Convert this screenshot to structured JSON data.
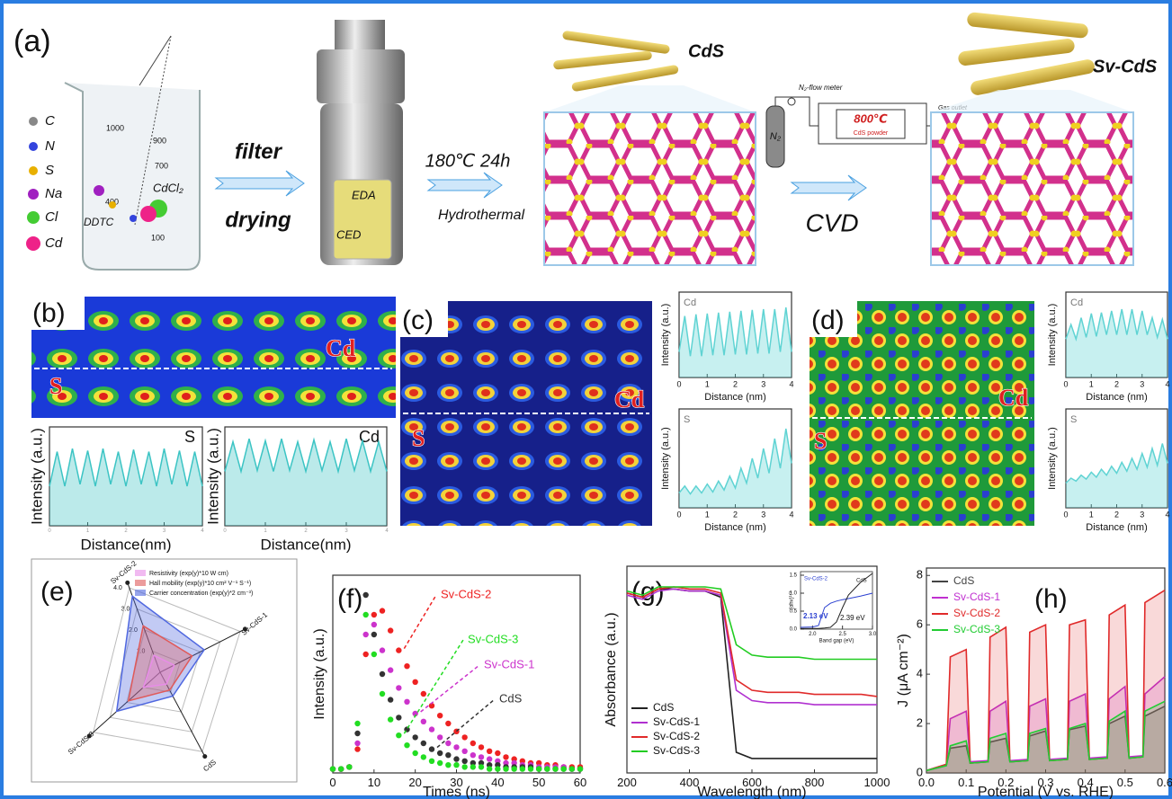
{
  "scheme": {
    "label": "(a)",
    "legend": [
      "C",
      "N",
      "S",
      "Na",
      "Cl",
      "Cd"
    ],
    "beaker_scale": [
      "1000",
      "900",
      "700",
      "400",
      "100"
    ],
    "beaker_labels": [
      "CdCl₂",
      "DDTC"
    ],
    "step1": [
      "filter",
      "drying"
    ],
    "autoclave": [
      "EDA",
      "CED"
    ],
    "step2": [
      "180℃ 24h",
      "Hydrothermal"
    ],
    "product1": "CdS",
    "cvd_setup": {
      "cylinder": "N₂",
      "flow": "N₂-flow meter",
      "temp": "800℃",
      "powder": "CdS powder",
      "outlet": "Gas outlet"
    },
    "step3": "CVD",
    "product2": "Sv-CdS"
  },
  "maps": [
    {
      "label": "(b)",
      "labels": [
        "Cd",
        "S"
      ]
    },
    {
      "label": "(c)",
      "labels": [
        "Cd",
        "S"
      ]
    },
    {
      "label": "(d)",
      "labels": [
        "Cd",
        "S"
      ]
    }
  ],
  "chart_data": [
    {
      "type": "area",
      "title": "S",
      "xlabel": "Distance(nm)",
      "ylabel": "Intensity (a.u.)",
      "x": [
        0,
        0.2,
        0.4,
        0.6,
        0.8,
        1,
        1.2,
        1.4,
        1.6,
        1.8,
        2,
        2.2,
        2.4,
        2.6,
        2.8,
        3,
        3.2,
        3.4,
        3.6,
        3.8,
        4
      ],
      "values": [
        0.4,
        0.75,
        0.4,
        0.78,
        0.42,
        0.76,
        0.4,
        0.78,
        0.42,
        0.75,
        0.4,
        0.77,
        0.42,
        0.75,
        0.4,
        0.78,
        0.42,
        0.76,
        0.4,
        0.75,
        0.4
      ],
      "xlim": [
        0,
        4
      ],
      "ylim": [
        0,
        1
      ],
      "xticks": [
        0,
        1,
        2,
        3,
        4
      ],
      "color": "#3cc4c4"
    },
    {
      "type": "area",
      "title": "Cd",
      "xlabel": "Distance(nm)",
      "ylabel": "Intensity (a.u.)",
      "x": [
        0,
        0.2,
        0.4,
        0.6,
        0.8,
        1,
        1.2,
        1.4,
        1.6,
        1.8,
        2,
        2.2,
        2.4,
        2.6,
        2.8,
        3,
        3.2,
        3.4,
        3.6,
        3.8,
        4
      ],
      "values": [
        0.55,
        0.85,
        0.55,
        0.88,
        0.56,
        0.86,
        0.55,
        0.88,
        0.56,
        0.85,
        0.55,
        0.87,
        0.56,
        0.85,
        0.55,
        0.88,
        0.56,
        0.86,
        0.55,
        0.85,
        0.55
      ],
      "xlim": [
        0,
        4
      ],
      "ylim": [
        0,
        1
      ],
      "xticks": [
        0,
        1,
        2,
        3,
        4
      ],
      "color": "#3cc4c4"
    },
    {
      "type": "area",
      "title": "Cd",
      "xlabel": "Distance (nm)",
      "ylabel": "Intensity (a.u.)",
      "x": [
        0,
        0.2,
        0.4,
        0.6,
        0.8,
        1,
        1.2,
        1.4,
        1.6,
        1.8,
        2,
        2.2,
        2.4,
        2.6,
        2.8,
        3,
        3.2,
        3.4,
        3.6,
        3.8,
        4
      ],
      "values": [
        0.3,
        0.72,
        0.25,
        0.74,
        0.25,
        0.75,
        0.26,
        0.76,
        0.26,
        0.77,
        0.27,
        0.78,
        0.27,
        0.79,
        0.28,
        0.8,
        0.28,
        0.8,
        0.3,
        0.82,
        0.3
      ],
      "xlim": [
        0,
        4
      ],
      "ylim": [
        0,
        1
      ],
      "xticks": [
        0,
        1,
        2,
        3,
        4
      ],
      "color": "#5fd3d3"
    },
    {
      "type": "area",
      "title": "S",
      "xlabel": "Distance (nm)",
      "ylabel": "Intensity (a.u.)",
      "x": [
        0,
        0.2,
        0.4,
        0.6,
        0.8,
        1,
        1.2,
        1.4,
        1.6,
        1.8,
        2,
        2.2,
        2.4,
        2.6,
        2.8,
        3,
        3.2,
        3.4,
        3.6,
        3.8,
        4
      ],
      "values": [
        0.15,
        0.22,
        0.14,
        0.22,
        0.15,
        0.24,
        0.16,
        0.27,
        0.18,
        0.32,
        0.2,
        0.4,
        0.25,
        0.5,
        0.3,
        0.6,
        0.35,
        0.7,
        0.4,
        0.8,
        0.45
      ],
      "xlim": [
        0,
        4
      ],
      "ylim": [
        0,
        1
      ],
      "xticks": [
        0,
        1,
        2,
        3,
        4
      ],
      "color": "#5fd3d3"
    },
    {
      "type": "area",
      "title": "Cd",
      "xlabel": "Distance (nm)",
      "ylabel": "Intensity (a.u.)",
      "x": [
        0,
        0.2,
        0.4,
        0.6,
        0.8,
        1,
        1.2,
        1.4,
        1.6,
        1.8,
        2,
        2.2,
        2.4,
        2.6,
        2.8,
        3,
        3.2,
        3.4,
        3.6,
        3.8,
        4
      ],
      "values": [
        0.45,
        0.62,
        0.45,
        0.7,
        0.47,
        0.75,
        0.48,
        0.76,
        0.5,
        0.78,
        0.5,
        0.8,
        0.5,
        0.8,
        0.5,
        0.78,
        0.5,
        0.7,
        0.47,
        0.68,
        0.45
      ],
      "xlim": [
        0,
        4
      ],
      "ylim": [
        0,
        1
      ],
      "xticks": [
        0,
        1,
        2,
        3,
        4
      ],
      "color": "#5fd3d3"
    },
    {
      "type": "area",
      "title": "S",
      "xlabel": "Distance (nm)",
      "ylabel": "Intensity (a.u.)",
      "x": [
        0,
        0.2,
        0.4,
        0.6,
        0.8,
        1,
        1.2,
        1.4,
        1.6,
        1.8,
        2,
        2.2,
        2.4,
        2.6,
        2.8,
        3,
        3.2,
        3.4,
        3.6,
        3.8,
        4
      ],
      "values": [
        0.25,
        0.3,
        0.27,
        0.33,
        0.29,
        0.36,
        0.31,
        0.39,
        0.33,
        0.42,
        0.35,
        0.46,
        0.37,
        0.5,
        0.39,
        0.55,
        0.41,
        0.6,
        0.43,
        0.65,
        0.45
      ],
      "xlim": [
        0,
        4
      ],
      "ylim": [
        0,
        1
      ],
      "xticks": [
        0,
        1,
        2,
        3,
        4
      ],
      "color": "#5fd3d3"
    },
    {
      "type": "radar",
      "label": "(e)",
      "categories": [
        "Sv-CdS-2",
        "Sv-CdS-1",
        "CdS",
        "Sv-CdS-3"
      ],
      "series": [
        {
          "name": "Resistivity (exp(y)*10 W cm)",
          "color": "#e88ce8",
          "values": [
            0.8,
            0.7,
            0.6,
            1.0
          ]
        },
        {
          "name": "Hall mobility (exp(y)*10 cm² V⁻¹ S⁻¹)",
          "color": "#e05a5a",
          "values": [
            2.2,
            1.6,
            0.9,
            1.9
          ]
        },
        {
          "name": "Carrier concentration (exp(y)*2 cm⁻³)",
          "color": "#5068e0",
          "values": [
            3.6,
            2.2,
            1.2,
            2.6
          ]
        }
      ],
      "ylim": [
        0,
        4
      ],
      "yticks": [
        {
          "value": 1,
          "label": "1.0"
        },
        {
          "value": 2,
          "label": "2.0"
        },
        {
          "value": 3,
          "label": "3.0"
        },
        {
          "value": 4,
          "label": "4.0"
        }
      ]
    },
    {
      "type": "scatter",
      "label": "(f)",
      "xlabel": "Times (ns)",
      "ylabel": "Intensity (a.u.)",
      "x": [
        0,
        2,
        4,
        6,
        8,
        10,
        12,
        14,
        16,
        18,
        20,
        22,
        24,
        26,
        28,
        30,
        32,
        34,
        36,
        38,
        40,
        42,
        44,
        46,
        48,
        50,
        52,
        54,
        56,
        58,
        60
      ],
      "series": [
        {
          "name": "CdS",
          "color": "#333333",
          "values": [
            0.02,
            0.02,
            0.03,
            0.2,
            0.9,
            0.7,
            0.5,
            0.37,
            0.28,
            0.22,
            0.18,
            0.15,
            0.12,
            0.1,
            0.09,
            0.07,
            0.06,
            0.05,
            0.05,
            0.04,
            0.04,
            0.03,
            0.03,
            0.03,
            0.03,
            0.02,
            0.02,
            0.02,
            0.02,
            0.02,
            0.02
          ]
        },
        {
          "name": "Sv-CdS-1",
          "color": "#cc33cc",
          "values": [
            0.02,
            0.02,
            0.03,
            0.15,
            0.7,
            0.75,
            0.62,
            0.52,
            0.43,
            0.36,
            0.3,
            0.26,
            0.22,
            0.18,
            0.15,
            0.13,
            0.11,
            0.09,
            0.08,
            0.07,
            0.06,
            0.05,
            0.05,
            0.04,
            0.04,
            0.03,
            0.03,
            0.03,
            0.03,
            0.02,
            0.02
          ]
        },
        {
          "name": "Sv-CdS-2",
          "color": "#ee2222",
          "values": [
            0.02,
            0.02,
            0.03,
            0.12,
            0.6,
            0.8,
            0.82,
            0.72,
            0.62,
            0.54,
            0.46,
            0.4,
            0.34,
            0.29,
            0.25,
            0.21,
            0.18,
            0.15,
            0.13,
            0.11,
            0.1,
            0.08,
            0.07,
            0.06,
            0.05,
            0.05,
            0.04,
            0.04,
            0.03,
            0.03,
            0.03
          ]
        },
        {
          "name": "Sv-CdS-3",
          "color": "#22dd22",
          "values": [
            0.02,
            0.02,
            0.03,
            0.25,
            0.8,
            0.6,
            0.4,
            0.27,
            0.19,
            0.14,
            0.1,
            0.08,
            0.06,
            0.05,
            0.04,
            0.04,
            0.03,
            0.03,
            0.03,
            0.02,
            0.02,
            0.02,
            0.02,
            0.02,
            0.02,
            0.02,
            0.02,
            0.02,
            0.02,
            0.02,
            0.02
          ]
        }
      ],
      "xlim": [
        0,
        60
      ],
      "ylim": [
        0,
        1
      ],
      "xticks": [
        0,
        10,
        20,
        30,
        40,
        50,
        60
      ]
    },
    {
      "type": "line",
      "label": "(g)",
      "xlabel": "Wavelength (nm)",
      "ylabel": "Absorbance (a.u.)",
      "x": [
        200,
        250,
        300,
        350,
        400,
        450,
        500,
        550,
        600,
        650,
        700,
        750,
        800,
        850,
        900,
        950,
        1000
      ],
      "series": [
        {
          "name": "CdS",
          "color": "#222222",
          "values": [
            0.87,
            0.85,
            0.89,
            0.89,
            0.88,
            0.88,
            0.85,
            0.1,
            0.07,
            0.07,
            0.07,
            0.07,
            0.07,
            0.07,
            0.07,
            0.07,
            0.07
          ]
        },
        {
          "name": "Sv-CdS-1",
          "color": "#b030d0",
          "values": [
            0.86,
            0.84,
            0.88,
            0.89,
            0.88,
            0.88,
            0.86,
            0.4,
            0.35,
            0.34,
            0.34,
            0.34,
            0.33,
            0.33,
            0.33,
            0.33,
            0.33
          ]
        },
        {
          "name": "Sv-CdS-2",
          "color": "#e02a2a",
          "values": [
            0.87,
            0.85,
            0.89,
            0.9,
            0.89,
            0.89,
            0.87,
            0.45,
            0.4,
            0.39,
            0.39,
            0.39,
            0.38,
            0.38,
            0.38,
            0.38,
            0.37
          ]
        },
        {
          "name": "Sv-CdS-3",
          "color": "#22cc22",
          "values": [
            0.88,
            0.86,
            0.9,
            0.9,
            0.9,
            0.9,
            0.89,
            0.62,
            0.57,
            0.56,
            0.56,
            0.56,
            0.55,
            0.55,
            0.55,
            0.55,
            0.55
          ]
        }
      ],
      "xlim": [
        200,
        1000
      ],
      "ylim": [
        0,
        1
      ],
      "xticks": [
        200,
        400,
        600,
        800,
        1000
      ]
    },
    {
      "type": "line",
      "xlabel": "Band gap (eV)",
      "ylabel": "(αhν)¹ᐟ²",
      "annotations": [
        "2.13 eV",
        "2.39 eV"
      ],
      "x": [
        1.8,
        2.0,
        2.1,
        2.2,
        2.3,
        2.4,
        2.5,
        2.6,
        2.8,
        3.0
      ],
      "series": [
        {
          "name": "Sv-CdS-2",
          "color": "#2a3fd0",
          "values": [
            0.05,
            0.06,
            0.1,
            0.6,
            0.72,
            0.78,
            0.82,
            0.85,
            0.92,
            1.0
          ]
        },
        {
          "name": "CdS",
          "color": "#222222",
          "values": [
            0.02,
            0.02,
            0.02,
            0.03,
            0.05,
            0.2,
            0.6,
            0.95,
            1.3,
            1.55
          ]
        }
      ],
      "xlim": [
        1.8,
        3.0
      ],
      "ylim": [
        0,
        1.6
      ],
      "xticks": [
        {
          "value": 2,
          "label": "2.0"
        },
        {
          "value": 2.5,
          "label": "2.5"
        },
        {
          "value": 3,
          "label": "3.0"
        }
      ],
      "yticks": [
        {
          "value": 0,
          "label": "0.0"
        },
        {
          "value": 0.5,
          "label": "0.5"
        },
        {
          "value": 1,
          "label": "1.0"
        },
        {
          "value": 1.5,
          "label": "1.5"
        }
      ]
    },
    {
      "type": "line",
      "label": "(h)",
      "xlabel": "Potential (V vs. RHE)",
      "ylabel": "J (μA cm⁻²)",
      "x": [
        0,
        0.05,
        0.06,
        0.1,
        0.11,
        0.155,
        0.16,
        0.2,
        0.21,
        0.255,
        0.26,
        0.3,
        0.31,
        0.355,
        0.36,
        0.4,
        0.41,
        0.455,
        0.46,
        0.5,
        0.51,
        0.545,
        0.55,
        0.6
      ],
      "series": [
        {
          "name": "CdS",
          "color": "#444444",
          "values": [
            0.1,
            0.3,
            1.0,
            1.1,
            0.4,
            0.45,
            1.25,
            1.4,
            0.45,
            0.5,
            1.5,
            1.7,
            0.5,
            0.55,
            1.75,
            1.9,
            0.55,
            0.6,
            2.0,
            2.3,
            0.6,
            0.65,
            2.3,
            2.7
          ]
        },
        {
          "name": "Sv-CdS-1",
          "color": "#c030d0",
          "values": [
            0.1,
            0.35,
            2.2,
            2.5,
            0.45,
            0.5,
            2.5,
            2.9,
            0.5,
            0.55,
            2.7,
            3.0,
            0.55,
            0.6,
            2.9,
            3.2,
            0.6,
            0.65,
            3.0,
            3.5,
            0.65,
            0.7,
            3.2,
            3.9
          ]
        },
        {
          "name": "Sv-CdS-2",
          "color": "#e02a2a",
          "values": [
            0.1,
            0.35,
            4.7,
            5.0,
            0.4,
            0.45,
            5.5,
            5.9,
            0.45,
            0.5,
            5.7,
            6.0,
            0.5,
            0.55,
            6.0,
            6.2,
            0.55,
            0.6,
            6.4,
            6.8,
            0.6,
            0.65,
            6.9,
            7.4
          ]
        },
        {
          "name": "Sv-CdS-3",
          "color": "#22cc33",
          "values": [
            0.1,
            0.3,
            1.1,
            1.3,
            0.4,
            0.45,
            1.4,
            1.6,
            0.45,
            0.5,
            1.6,
            1.8,
            0.5,
            0.55,
            1.8,
            2.0,
            0.55,
            0.6,
            2.1,
            2.5,
            0.6,
            0.65,
            2.5,
            2.9
          ]
        }
      ],
      "xlim": [
        0,
        0.6
      ],
      "ylim": [
        0,
        8.3
      ],
      "xticks": [
        {
          "value": 0,
          "label": "0.0"
        },
        {
          "value": 0.1,
          "label": "0.1"
        },
        {
          "value": 0.2,
          "label": "0.2"
        },
        {
          "value": 0.3,
          "label": "0.3"
        },
        {
          "value": 0.4,
          "label": "0.4"
        },
        {
          "value": 0.5,
          "label": "0.5"
        },
        {
          "value": 0.6,
          "label": "0.6"
        }
      ],
      "yticks": [
        0,
        2,
        4,
        6,
        8
      ]
    }
  ]
}
